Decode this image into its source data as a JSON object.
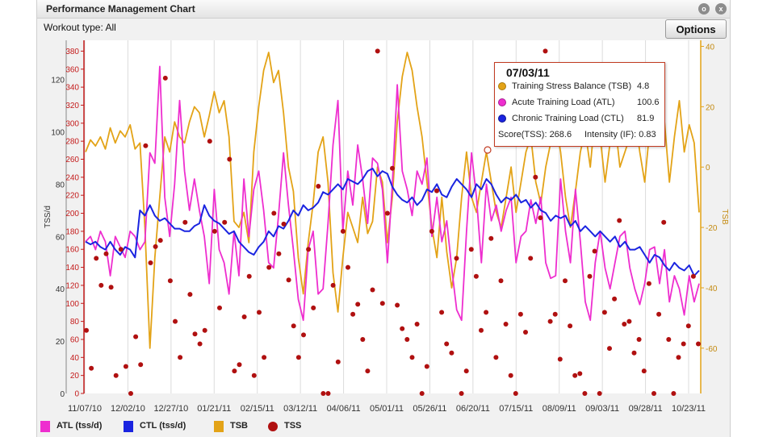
{
  "window": {
    "title": "Performance Management Chart",
    "workout_type": "Workout type: All",
    "options_label": "Options",
    "close_glyph": "x",
    "settings_glyph": "o"
  },
  "tooltip": {
    "date": "07/03/11",
    "rows": [
      {
        "label": "Training Stress Balance (TSB)",
        "value": "4.8",
        "color": "#e3a317"
      },
      {
        "label": "Acute Training Load (ATL)",
        "value": "100.6",
        "color": "#ee2ecf"
      },
      {
        "label": "Chronic Training Load (CTL)",
        "value": "81.9",
        "color": "#1a24e0"
      }
    ],
    "score": "Score(TSS): 268.6",
    "intensity": "Intensity (IF): 0.83"
  },
  "legend": [
    {
      "label": "ATL (tss/d)",
      "color": "#ee2ecf",
      "shape": "square"
    },
    {
      "label": "CTL (tss/d)",
      "color": "#1a24e0",
      "shape": "square"
    },
    {
      "label": "TSB",
      "color": "#e3a317",
      "shape": "square"
    },
    {
      "label": "TSS",
      "color": "#b01010",
      "shape": "circle"
    }
  ],
  "chart_data": {
    "type": "line",
    "x_ticks": [
      "11/07/10",
      "12/02/10",
      "12/27/10",
      "01/21/11",
      "02/15/11",
      "03/12/11",
      "04/06/11",
      "05/01/11",
      "05/26/11",
      "06/20/11",
      "07/15/11",
      "08/09/11",
      "09/03/11",
      "09/28/11",
      "10/23/11"
    ],
    "y_left_label": "TSS/d",
    "y_left_ticks": [
      0,
      20,
      40,
      60,
      80,
      100,
      120
    ],
    "y_left_range": [
      0,
      135
    ],
    "y_tss_ticks": [
      0,
      20,
      40,
      60,
      80,
      100,
      120,
      140,
      160,
      180,
      200,
      220,
      240,
      260,
      280,
      300,
      320,
      340,
      360,
      380
    ],
    "y_tss_range": [
      0,
      392
    ],
    "y_right_label": "TSB",
    "y_right_ticks": [
      40,
      20,
      0,
      -20,
      -40,
      -60
    ],
    "y_right_range": [
      -75,
      42
    ],
    "colors": {
      "atl": "#ee2ecf",
      "ctl": "#1a24e0",
      "tsb": "#e3a317",
      "tss": "#b01010",
      "axis_left": "#555555",
      "axis_tss": "#c41a1a",
      "axis_right": "#e3a317",
      "grid": "#dcdcdc"
    },
    "grid": "vertical",
    "series": [
      {
        "name": "ATL (tss/d)",
        "key": "atl",
        "values": [
          58,
          60,
          55,
          62,
          58,
          45,
          60,
          56,
          52,
          62,
          60,
          55,
          58,
          92,
          88,
          125,
          75,
          60,
          80,
          112,
          85,
          70,
          82,
          70,
          60,
          42,
          78,
          55,
          50,
          38,
          62,
          45,
          82,
          60,
          78,
          85,
          70,
          50,
          48,
          68,
          92,
          72,
          55,
          36,
          28,
          55,
          62,
          38,
          40,
          65,
          95,
          112,
          62,
          85,
          72,
          95,
          82,
          65,
          90,
          88,
          78,
          50,
          80,
          118,
          85,
          78,
          68,
          85,
          80,
          90,
          60,
          75,
          58,
          66,
          48,
          32,
          28,
          62,
          92,
          75,
          50,
          80,
          66,
          72,
          62,
          70,
          75,
          50,
          60,
          62,
          74,
          65,
          75,
          50,
          44,
          45,
          82,
          62,
          50,
          78,
          58,
          35,
          28,
          50,
          62,
          48,
          40,
          50,
          60,
          62,
          48,
          40,
          34,
          42,
          55,
          56,
          42,
          55,
          35,
          45,
          40,
          30,
          45,
          35,
          42
        ]
      },
      {
        "name": "CTL (tss/d)",
        "key": "ctl",
        "values": [
          58,
          57,
          58,
          56,
          55,
          58,
          55,
          53,
          56,
          55,
          52,
          70,
          68,
          72,
          68,
          66,
          67,
          65,
          63,
          63,
          62,
          62,
          64,
          65,
          72,
          68,
          66,
          65,
          63,
          61,
          62,
          58,
          56,
          54,
          53,
          56,
          58,
          62,
          60,
          64,
          63,
          66,
          70,
          68,
          72,
          70,
          71,
          73,
          77,
          76,
          78,
          80,
          78,
          82,
          81,
          80,
          82,
          85,
          86,
          83,
          85,
          84,
          79,
          76,
          74,
          73,
          75,
          72,
          74,
          78,
          77,
          80,
          76,
          75,
          79,
          82,
          80,
          78,
          75,
          80,
          78,
          82,
          80,
          76,
          73,
          75,
          74,
          76,
          73,
          74,
          71,
          73,
          70,
          69,
          66,
          68,
          67,
          68,
          64,
          66,
          62,
          64,
          62,
          60,
          62,
          60,
          58,
          60,
          56,
          58,
          55,
          55,
          56,
          53,
          50,
          53,
          52,
          49,
          47,
          50,
          48,
          47,
          49,
          45,
          47
        ]
      },
      {
        "name": "TSB",
        "key": "tsb",
        "values": [
          5,
          9,
          7,
          10,
          6,
          13,
          8,
          12,
          10,
          14,
          6,
          8,
          -20,
          -60,
          -30,
          -10,
          10,
          5,
          15,
          10,
          8,
          15,
          20,
          18,
          10,
          17,
          25,
          18,
          22,
          10,
          -18,
          -20,
          -15,
          -25,
          5,
          20,
          32,
          38,
          28,
          32,
          18,
          0,
          -8,
          -30,
          -42,
          -25,
          -12,
          5,
          10,
          -5,
          -35,
          -48,
          -30,
          -15,
          -20,
          -25,
          -10,
          -22,
          -18,
          0,
          -5,
          -25,
          -10,
          15,
          30,
          38,
          32,
          20,
          10,
          -5,
          -20,
          -30,
          -10,
          -28,
          -40,
          -30,
          -10,
          5,
          -10,
          -15,
          -5,
          5,
          -5,
          -15,
          -20,
          -10,
          0,
          -15,
          -5,
          5,
          10,
          -5,
          -12,
          0,
          8,
          15,
          5,
          -10,
          -20,
          -8,
          5,
          12,
          0,
          18,
          10,
          -5,
          8,
          15,
          0,
          5,
          10,
          18,
          5,
          -5,
          12,
          20,
          8,
          15,
          -5,
          10,
          22,
          5,
          14,
          8,
          -15
        ]
      }
    ],
    "tss_points": [
      {
        "n": 125,
        "values": [
          70,
          28,
          150,
          120,
          155,
          118,
          20,
          160,
          30,
          0,
          63,
          32,
          275,
          145,
          163,
          170,
          350,
          125,
          80,
          40,
          190,
          110,
          66,
          55,
          70,
          280,
          180,
          95,
          190,
          260,
          25,
          32,
          85,
          130,
          20,
          90,
          40,
          140,
          200,
          155,
          188,
          126,
          75,
          40,
          65,
          160,
          95,
          230,
          0,
          0,
          120,
          35,
          180,
          140,
          88,
          99,
          60,
          25,
          115,
          380,
          100,
          200,
          250,
          98,
          72,
          60,
          40,
          77,
          0,
          30,
          180,
          225,
          90,
          55,
          45,
          150,
          0,
          25,
          160,
          130,
          70,
          90,
          172,
          40,
          125,
          77,
          20,
          0,
          88,
          68,
          150,
          240,
          195,
          380,
          80,
          88,
          38,
          125,
          75,
          20,
          22,
          0,
          130,
          158,
          0,
          90,
          50,
          105,
          192,
          77,
          80,
          45,
          60,
          25,
          122,
          0,
          88,
          190,
          60,
          0,
          40,
          55,
          75,
          130,
          55
        ]
      }
    ]
  }
}
